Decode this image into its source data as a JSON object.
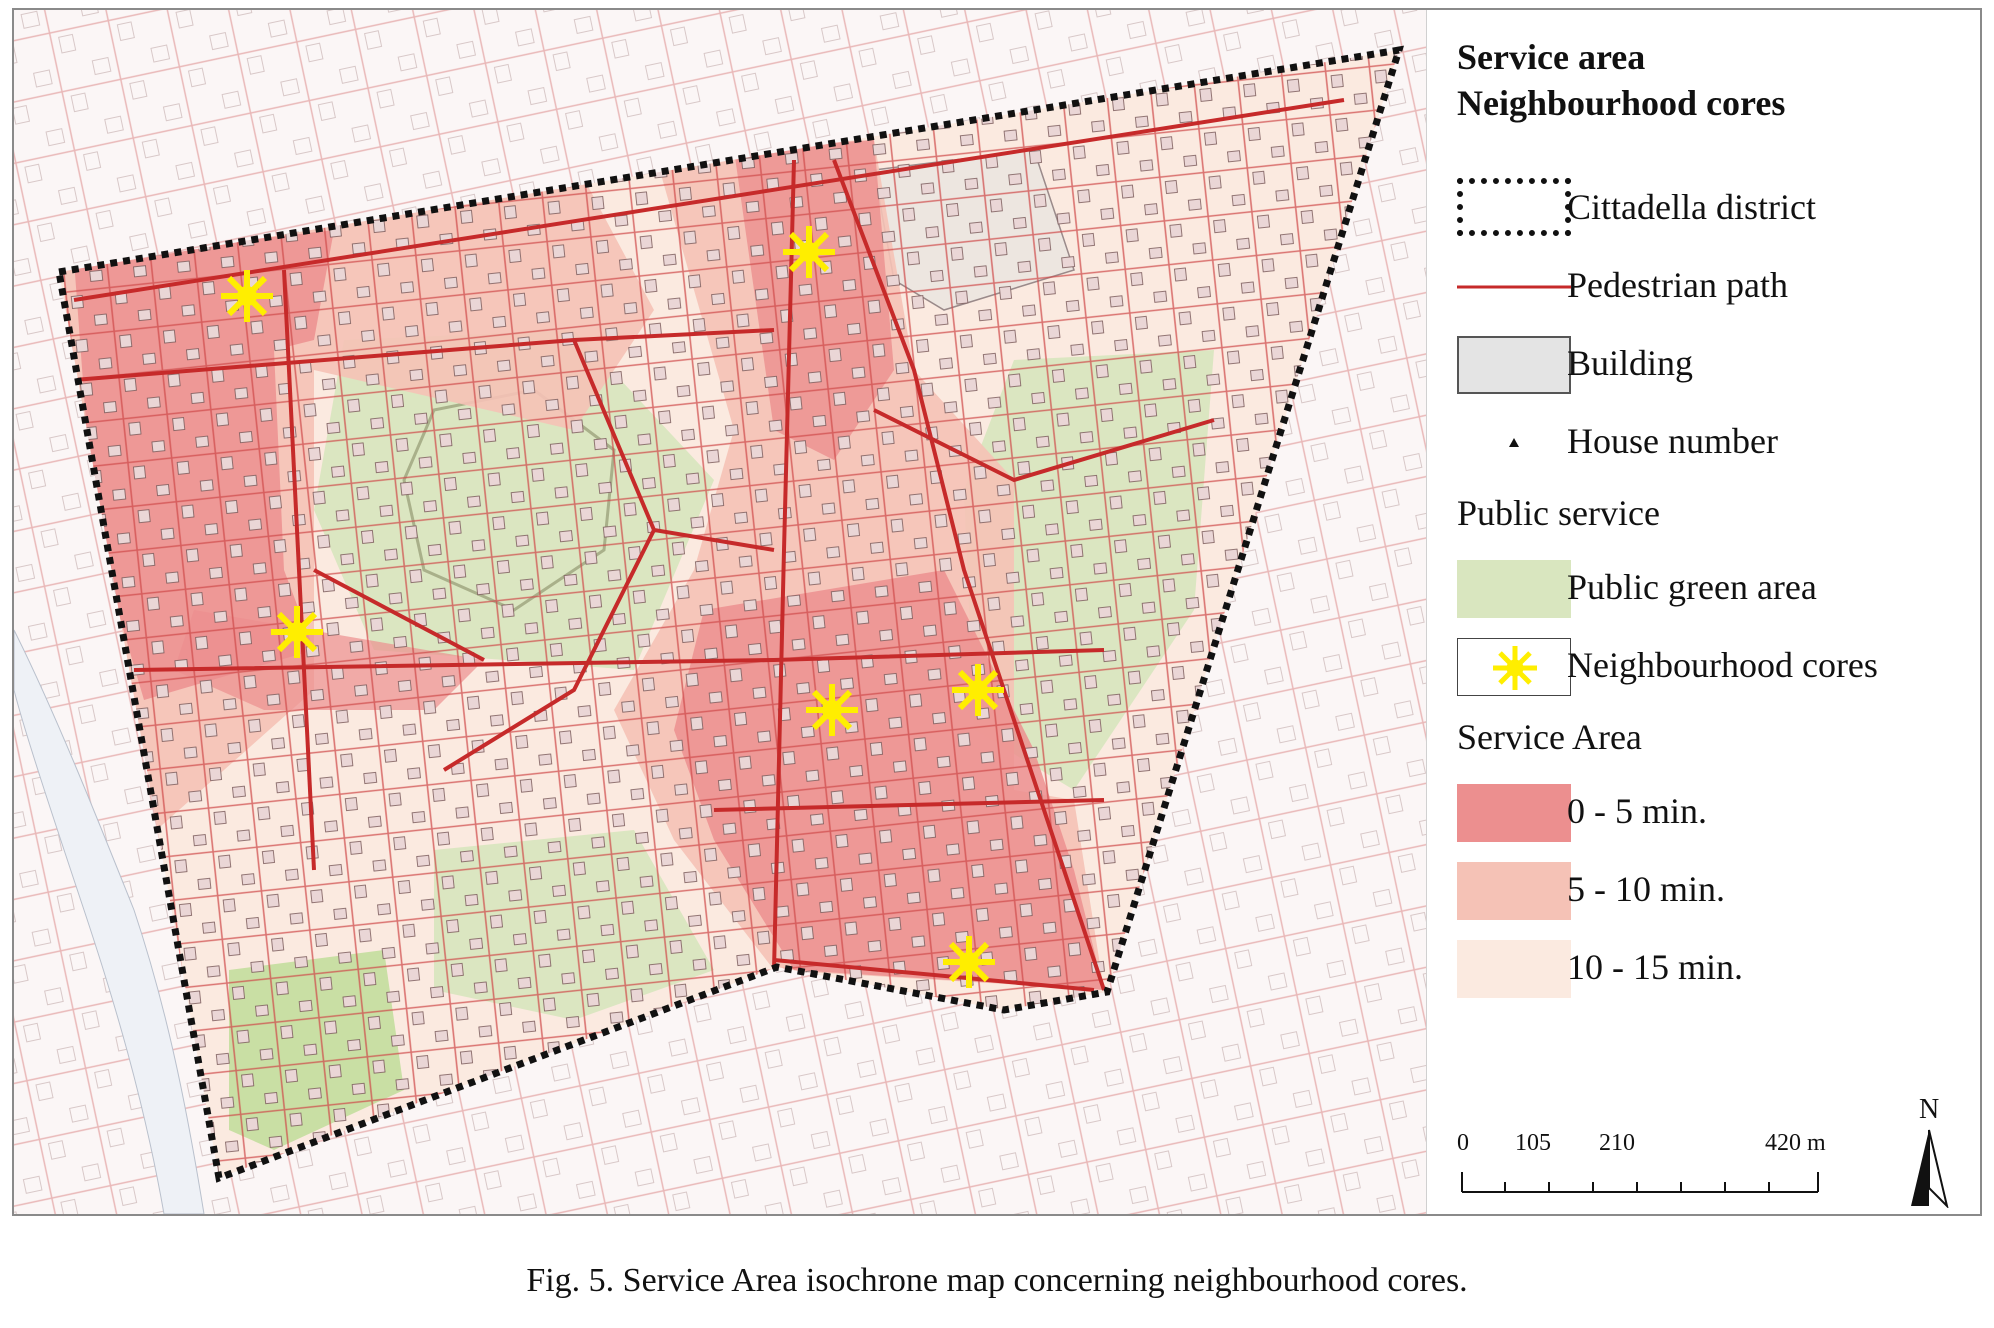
{
  "legend": {
    "title_line1": "Service area",
    "title_line2": "Neighbourhood cores",
    "items": {
      "district": "Cittadella district",
      "pedestrian": "Pedestrian path",
      "building": "Building",
      "house_number": "House number"
    },
    "public_service_heading": "Public service",
    "public_service": {
      "green": "Public green area",
      "cores": "Neighbourhood cores"
    },
    "service_area_heading": "Service Area",
    "service_area": {
      "band1": "0 - 5 min.",
      "band2": "5 - 10 min.",
      "band3": "10 - 15 min."
    }
  },
  "scale_bar": {
    "ticks": [
      "0",
      "105",
      "210",
      "420 m"
    ]
  },
  "north_label": "N",
  "caption": "Fig. 5. Service Area isochrone map concerning neighbourhood cores.",
  "colors": {
    "band_0_5": "#ec8f8f",
    "band_5_10": "#f5c2b6",
    "band_10_15": "#fbeae0",
    "green_area": "#d9e6bf",
    "pedestrian_path": "#c62a2a",
    "core_marker": "#ffee00",
    "building": "#e4e4e4"
  },
  "map": {
    "neighbourhood_core_count": 6
  }
}
